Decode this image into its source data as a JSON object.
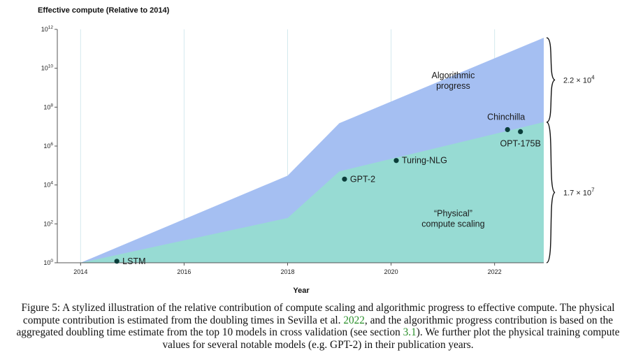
{
  "chart_data": {
    "type": "area",
    "y_axis_title": "Effective compute (Relative to 2014)",
    "xlabel": "Year",
    "y_scale": "log10",
    "ylim": [
      1,
      1000000000000.0
    ],
    "xlim": [
      2013.55,
      2022.95
    ],
    "x_ticks": [
      2014,
      2016,
      2018,
      2020,
      2022
    ],
    "y_ticks": [
      {
        "base": "10",
        "exp": "0"
      },
      {
        "base": "10",
        "exp": "2"
      },
      {
        "base": "10",
        "exp": "4"
      },
      {
        "base": "10",
        "exp": "6"
      },
      {
        "base": "10",
        "exp": "8"
      },
      {
        "base": "10",
        "exp": "10"
      },
      {
        "base": "10",
        "exp": "12"
      }
    ],
    "series": [
      {
        "key": "physical",
        "color": "#97dbd3",
        "points": [
          [
            2014.0,
            1
          ],
          [
            2018.0,
            200
          ],
          [
            2019.0,
            50000
          ],
          [
            2022.95,
            17000000.0
          ]
        ]
      },
      {
        "key": "algorithmic",
        "color": "#a5bff2",
        "points": [
          [
            2014.0,
            1
          ],
          [
            2018.0,
            30000
          ],
          [
            2019.0,
            15000000.0
          ],
          [
            2022.95,
            370000000000.0
          ]
        ]
      }
    ],
    "region_labels": [
      {
        "lines": [
          "Algorithmic",
          "progress"
        ],
        "x": 2021.2,
        "y": 3000000000.0
      },
      {
        "lines": [
          "“Physical”",
          "compute scaling"
        ],
        "x": 2021.2,
        "y": 250
      }
    ],
    "points": [
      {
        "label": "LSTM",
        "x": 2014.7,
        "y": 1.2,
        "label_side": "right"
      },
      {
        "label": "GPT-2",
        "x": 2019.1,
        "y": 20000,
        "label_side": "right"
      },
      {
        "label": "Turing-NLG",
        "x": 2020.1,
        "y": 180000,
        "label_side": "right"
      },
      {
        "label": "Chinchilla",
        "x": 2022.25,
        "y": 7000000.0,
        "label_side": "above"
      },
      {
        "label": "OPT-175B",
        "x": 2022.5,
        "y": 5500000.0,
        "label_side": "below"
      }
    ],
    "braces": [
      {
        "mantissa": "2.2 × 10",
        "exp": "4",
        "from": 17000000.0,
        "to": 370000000000.0
      },
      {
        "mantissa": "1.7 × 10",
        "exp": "7",
        "from": 1,
        "to": 17000000.0
      }
    ],
    "grid": "vertical"
  },
  "caption": {
    "prefix": "Figure 5: A stylized illustration of the relative contribution of compute scaling and algorithmic progress to effective compute. The physical compute contribution is estimated from the doubling times in Sevilla et al. ",
    "cite_year": "2022",
    "middle": ", and the algorithmic progress contribution is based on the aggregated doubling time estimate from the top 10 models in cross validation (see section ",
    "cite_section": "3.1",
    "suffix": "). We further plot the physical training compute values for several notable models (e.g. GPT-2) in their publication years."
  }
}
